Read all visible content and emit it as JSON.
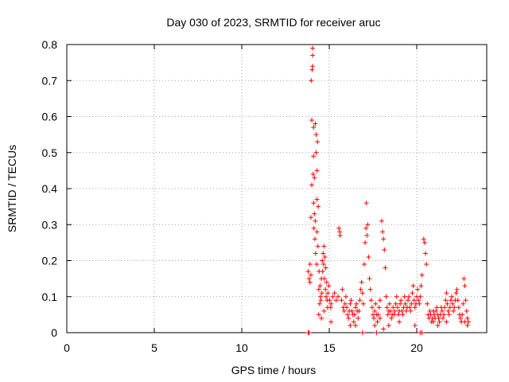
{
  "chart_data": {
    "type": "scatter",
    "title": "Day 030 of 2023, SRMTID for receiver aruc",
    "xlabel": "GPS time / hours",
    "ylabel": "SRMTID / TECUs",
    "xlim": [
      0,
      24
    ],
    "ylim": [
      0,
      0.8
    ],
    "x_ticks": [
      0,
      5,
      10,
      15,
      20
    ],
    "x_tick_labels": [
      "0",
      "5",
      "10",
      "15",
      "20"
    ],
    "y_ticks": [
      0,
      0.1,
      0.2,
      0.3,
      0.4,
      0.5,
      0.6,
      0.7,
      0.8
    ],
    "y_tick_labels": [
      "0",
      "0.1",
      "0.2",
      "0.3",
      "0.4",
      "0.5",
      "0.6",
      "0.7",
      "0.8"
    ],
    "grid": true,
    "marker_color": "#ff0000",
    "series": [
      {
        "name": "SRMTID",
        "marker": "plus",
        "points": [
          [
            13.8,
            0.17
          ],
          [
            13.85,
            0.15
          ],
          [
            13.9,
            0.19
          ],
          [
            13.9,
            0.14
          ],
          [
            13.95,
            0.16
          ],
          [
            13.95,
            0.32
          ],
          [
            14.0,
            0.41
          ],
          [
            14.0,
            0.59
          ],
          [
            14.05,
            0.77
          ],
          [
            14.05,
            0.79
          ],
          [
            14.05,
            0.74
          ],
          [
            14.1,
            0.57
          ],
          [
            14.1,
            0.49
          ],
          [
            14.1,
            0.36
          ],
          [
            14.15,
            0.43
          ],
          [
            14.15,
            0.33
          ],
          [
            14.2,
            0.31
          ],
          [
            14.2,
            0.58
          ],
          [
            14.25,
            0.55
          ],
          [
            14.25,
            0.5
          ],
          [
            14.3,
            0.45
          ],
          [
            14.3,
            0.37
          ],
          [
            14.3,
            0.28
          ],
          [
            13.97,
            0.7
          ],
          [
            14.02,
            0.73
          ],
          [
            14.08,
            0.44
          ],
          [
            14.12,
            0.29
          ],
          [
            14.18,
            0.26
          ],
          [
            14.22,
            0.22
          ],
          [
            14.28,
            0.19
          ],
          [
            14.35,
            0.24
          ],
          [
            14.4,
            0.12
          ],
          [
            14.45,
            0.08
          ],
          [
            14.5,
            0.1
          ],
          [
            14.55,
            0.15
          ],
          [
            14.6,
            0.2
          ],
          [
            14.65,
            0.22
          ],
          [
            14.7,
            0.24
          ],
          [
            14.75,
            0.21
          ],
          [
            14.8,
            0.18
          ],
          [
            14.85,
            0.14
          ],
          [
            14.33,
            0.53
          ],
          [
            14.37,
            0.35
          ],
          [
            14.42,
            0.17
          ],
          [
            14.47,
            0.13
          ],
          [
            14.52,
            0.09
          ],
          [
            14.58,
            0.11
          ],
          [
            14.62,
            0.17
          ],
          [
            14.68,
            0.19
          ],
          [
            14.72,
            0.15
          ],
          [
            14.78,
            0.12
          ],
          [
            14.82,
            0.1
          ],
          [
            14.88,
            0.09
          ],
          [
            14.92,
            0.11
          ],
          [
            14.98,
            0.13
          ],
          [
            15.02,
            0.09
          ],
          [
            15.08,
            0.07
          ],
          [
            14.4,
            0.05
          ],
          [
            14.55,
            0.04
          ],
          [
            14.7,
            0.06
          ],
          [
            14.9,
            0.07
          ],
          [
            15.1,
            0.08
          ],
          [
            15.2,
            0.1
          ],
          [
            15.3,
            0.11
          ],
          [
            15.4,
            0.09
          ],
          [
            15.5,
            0.1
          ],
          [
            15.55,
            0.29
          ],
          [
            15.6,
            0.28
          ],
          [
            15.62,
            0.27
          ],
          [
            15.7,
            0.09
          ],
          [
            15.75,
            0.12
          ],
          [
            15.8,
            0.07
          ],
          [
            15.85,
            0.06
          ],
          [
            15.9,
            0.08
          ],
          [
            15.95,
            0.1
          ],
          [
            16.0,
            0.07
          ],
          [
            16.05,
            0.05
          ],
          [
            16.1,
            0.04
          ],
          [
            16.15,
            0.06
          ],
          [
            16.2,
            0.08
          ],
          [
            16.25,
            0.09
          ],
          [
            16.3,
            0.06
          ],
          [
            16.35,
            0.05
          ],
          [
            16.4,
            0.03
          ],
          [
            16.45,
            0.05
          ],
          [
            16.5,
            0.07
          ],
          [
            16.55,
            0.08
          ],
          [
            16.6,
            0.06
          ],
          [
            16.65,
            0.04
          ],
          [
            16.7,
            0.06
          ],
          [
            16.75,
            0.09
          ],
          [
            16.8,
            0.12
          ],
          [
            16.85,
            0.14
          ],
          [
            16.9,
            0.11
          ],
          [
            16.95,
            0.08
          ],
          [
            17.0,
            0.19
          ],
          [
            17.05,
            0.25
          ],
          [
            17.1,
            0.29
          ],
          [
            17.12,
            0.36
          ],
          [
            17.15,
            0.27
          ],
          [
            17.2,
            0.3
          ],
          [
            17.25,
            0.21
          ],
          [
            17.3,
            0.15
          ],
          [
            17.35,
            0.12
          ],
          [
            17.4,
            0.09
          ],
          [
            17.45,
            0.07
          ],
          [
            17.5,
            0.05
          ],
          [
            17.55,
            0.04
          ],
          [
            17.6,
            0.06
          ],
          [
            17.65,
            0.08
          ],
          [
            17.7,
            0.05
          ],
          [
            17.75,
            0.03
          ],
          [
            17.8,
            0.05
          ],
          [
            17.85,
            0.07
          ],
          [
            17.9,
            0.09
          ],
          [
            18.0,
            0.31
          ],
          [
            18.05,
            0.28
          ],
          [
            18.1,
            0.26
          ],
          [
            18.15,
            0.23
          ],
          [
            18.2,
            0.18
          ],
          [
            18.25,
            0.1
          ],
          [
            18.3,
            0.07
          ],
          [
            18.35,
            0.05
          ],
          [
            18.4,
            0.06
          ],
          [
            18.45,
            0.08
          ],
          [
            18.5,
            0.06
          ],
          [
            18.55,
            0.04
          ],
          [
            18.6,
            0.05
          ],
          [
            18.65,
            0.07
          ],
          [
            18.7,
            0.05
          ],
          [
            18.75,
            0.06
          ],
          [
            18.8,
            0.08
          ],
          [
            18.85,
            0.1
          ],
          [
            18.9,
            0.07
          ],
          [
            18.95,
            0.05
          ],
          [
            19.0,
            0.06
          ],
          [
            19.05,
            0.08
          ],
          [
            19.1,
            0.09
          ],
          [
            19.15,
            0.06
          ],
          [
            19.2,
            0.05
          ],
          [
            19.25,
            0.07
          ],
          [
            19.3,
            0.1
          ],
          [
            19.35,
            0.08
          ],
          [
            19.4,
            0.06
          ],
          [
            19.45,
            0.07
          ],
          [
            19.5,
            0.09
          ],
          [
            19.55,
            0.1
          ],
          [
            19.6,
            0.07
          ],
          [
            19.65,
            0.06
          ],
          [
            19.7,
            0.08
          ],
          [
            19.75,
            0.11
          ],
          [
            19.8,
            0.13
          ],
          [
            19.85,
            0.09
          ],
          [
            19.9,
            0.07
          ],
          [
            19.95,
            0.08
          ],
          [
            20.0,
            0.1
          ],
          [
            20.05,
            0.12
          ],
          [
            20.1,
            0.09
          ],
          [
            20.15,
            0.08
          ],
          [
            20.2,
            0.1
          ],
          [
            20.25,
            0.13
          ],
          [
            20.3,
            0.16
          ],
          [
            20.4,
            0.26
          ],
          [
            20.45,
            0.25
          ],
          [
            20.5,
            0.22
          ],
          [
            20.55,
            0.19
          ],
          [
            20.6,
            0.08
          ],
          [
            20.65,
            0.05
          ],
          [
            20.7,
            0.04
          ],
          [
            20.75,
            0.06
          ],
          [
            20.8,
            0.05
          ],
          [
            20.85,
            0.03
          ],
          [
            20.9,
            0.04
          ],
          [
            20.95,
            0.06
          ],
          [
            21.0,
            0.05
          ],
          [
            21.05,
            0.04
          ],
          [
            21.1,
            0.06
          ],
          [
            21.15,
            0.07
          ],
          [
            21.2,
            0.05
          ],
          [
            21.25,
            0.04
          ],
          [
            21.3,
            0.03
          ],
          [
            21.35,
            0.05
          ],
          [
            21.4,
            0.07
          ],
          [
            21.45,
            0.06
          ],
          [
            21.5,
            0.04
          ],
          [
            21.55,
            0.05
          ],
          [
            21.6,
            0.07
          ],
          [
            21.65,
            0.09
          ],
          [
            21.7,
            0.11
          ],
          [
            21.75,
            0.08
          ],
          [
            21.8,
            0.06
          ],
          [
            21.85,
            0.05
          ],
          [
            21.9,
            0.07
          ],
          [
            21.95,
            0.09
          ],
          [
            22.0,
            0.1
          ],
          [
            22.05,
            0.08
          ],
          [
            22.1,
            0.06
          ],
          [
            22.15,
            0.07
          ],
          [
            22.2,
            0.09
          ],
          [
            22.25,
            0.11
          ],
          [
            22.3,
            0.12
          ],
          [
            22.35,
            0.09
          ],
          [
            22.4,
            0.07
          ],
          [
            22.45,
            0.05
          ],
          [
            22.5,
            0.04
          ],
          [
            22.55,
            0.03
          ],
          [
            22.6,
            0.05
          ],
          [
            22.65,
            0.08
          ],
          [
            22.7,
            0.15
          ],
          [
            22.75,
            0.13
          ],
          [
            22.8,
            0.09
          ],
          [
            22.85,
            0.06
          ],
          [
            22.9,
            0.04
          ],
          [
            22.95,
            0.03
          ],
          [
            13.8,
            0.0
          ],
          [
            13.85,
            0.0
          ],
          [
            20.2,
            0.0
          ],
          [
            20.3,
            0.0
          ],
          [
            16.9,
            0.0
          ],
          [
            17.7,
            0.0
          ],
          [
            18.1,
            0.01
          ],
          [
            17.6,
            0.02
          ],
          [
            16.2,
            0.02
          ],
          [
            15.1,
            0.03
          ],
          [
            21.2,
            0.02
          ],
          [
            22.9,
            0.02
          ],
          [
            22.75,
            0.03
          ],
          [
            21.7,
            0.03
          ],
          [
            20.95,
            0.03
          ],
          [
            19.9,
            0.02
          ],
          [
            19.0,
            0.03
          ],
          [
            18.4,
            0.02
          ],
          [
            17.9,
            0.04
          ],
          [
            16.5,
            0.02
          ]
        ]
      }
    ]
  }
}
